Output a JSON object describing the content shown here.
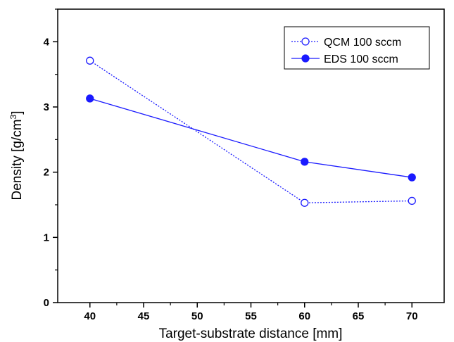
{
  "chart_data": {
    "type": "line",
    "title": "",
    "xlabel": "Target-substrate distance [mm]",
    "ylabel_parts": {
      "main": "Density [g/cm",
      "sup": "3",
      "end": "]"
    },
    "xlim": [
      37,
      73
    ],
    "ylim": [
      0,
      4.5
    ],
    "xticks": [
      40,
      45,
      50,
      55,
      60,
      65,
      70
    ],
    "yticks": [
      0,
      1,
      2,
      3,
      4
    ],
    "grid": false,
    "legend_position": "top-right",
    "color": "#1a1aff",
    "series": [
      {
        "name": "QCM 100 sccm",
        "marker": "open-circle",
        "line": "dotted",
        "x": [
          40,
          60,
          70
        ],
        "y": [
          3.71,
          1.53,
          1.56
        ]
      },
      {
        "name": "EDS 100 sccm",
        "marker": "filled-circle",
        "line": "solid",
        "x": [
          40,
          60,
          70
        ],
        "y": [
          3.13,
          2.16,
          1.92
        ]
      }
    ]
  }
}
